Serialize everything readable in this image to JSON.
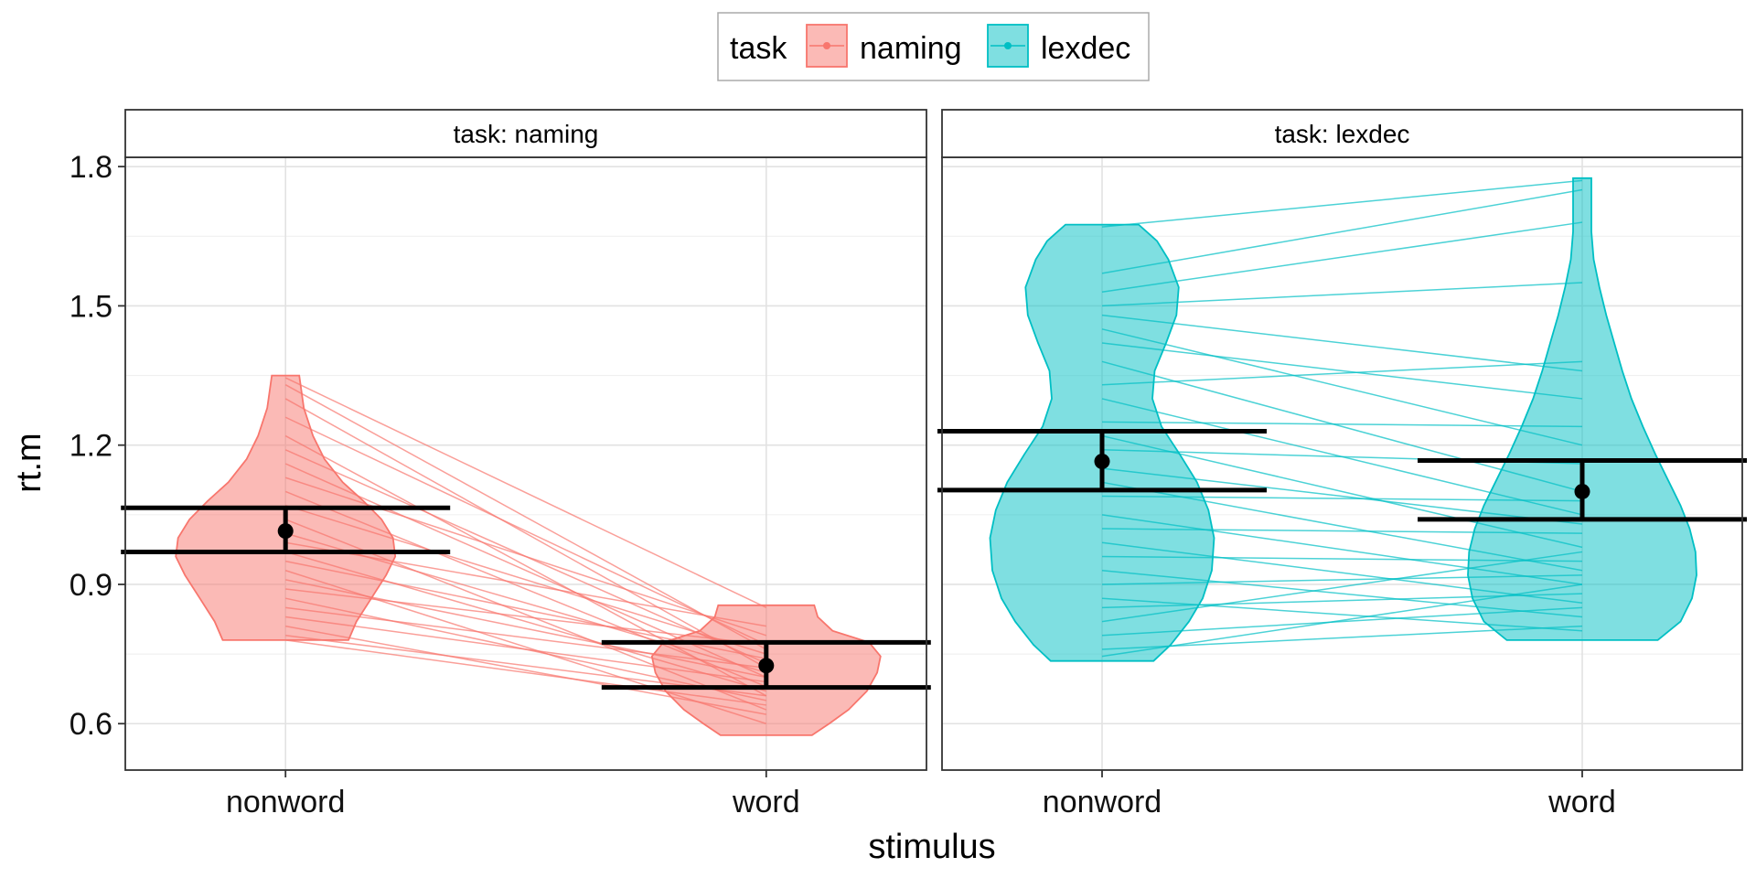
{
  "chart_data": {
    "type": "violin",
    "facet_label_prefix": "task: ",
    "facets": [
      "naming",
      "lexdec"
    ],
    "categories": [
      "nonword",
      "word"
    ],
    "xlabel": "stimulus",
    "ylabel": "rt.m",
    "ylim": [
      0.5,
      1.82
    ],
    "yticks": [
      0.6,
      0.9,
      1.2,
      1.5,
      1.8
    ],
    "ytick_labels": [
      "0.6",
      "0.9",
      "1.2",
      "1.5",
      "1.8"
    ],
    "grid": true,
    "legend": {
      "title": "task",
      "position": "top",
      "entries": [
        {
          "label": "naming",
          "color": "#F8766D"
        },
        {
          "label": "lexdec",
          "color": "#00BFC4"
        }
      ]
    },
    "series": [
      {
        "name": "naming",
        "color": "#F8766D",
        "groups": [
          {
            "category": "nonword",
            "range": [
              0.78,
              1.35
            ],
            "density": [
              [
                0.78,
                0.55
              ],
              [
                0.82,
                0.62
              ],
              [
                0.87,
                0.75
              ],
              [
                0.92,
                0.88
              ],
              [
                0.96,
                0.96
              ],
              [
                1.0,
                0.94
              ],
              [
                1.04,
                0.84
              ],
              [
                1.08,
                0.68
              ],
              [
                1.12,
                0.5
              ],
              [
                1.17,
                0.34
              ],
              [
                1.22,
                0.24
              ],
              [
                1.28,
                0.16
              ],
              [
                1.35,
                0.12
              ]
            ],
            "mean": 1.015,
            "ci": [
              0.97,
              1.065
            ]
          },
          {
            "category": "word",
            "range": [
              0.575,
              0.855
            ],
            "density": [
              [
                0.575,
                0.4
              ],
              [
                0.6,
                0.55
              ],
              [
                0.63,
                0.72
              ],
              [
                0.67,
                0.88
              ],
              [
                0.71,
                0.97
              ],
              [
                0.745,
                1.0
              ],
              [
                0.775,
                0.9
              ],
              [
                0.8,
                0.58
              ],
              [
                0.83,
                0.45
              ],
              [
                0.855,
                0.42
              ]
            ],
            "mean": 0.725,
            "ci": [
              0.678,
              0.775
            ]
          }
        ],
        "pairs": [
          [
            1.345,
            0.85
          ],
          [
            1.33,
            0.76
          ],
          [
            1.3,
            0.72
          ],
          [
            1.26,
            0.77
          ],
          [
            1.22,
            0.66
          ],
          [
            1.19,
            0.73
          ],
          [
            1.16,
            0.7
          ],
          [
            1.13,
            0.79
          ],
          [
            1.1,
            0.68
          ],
          [
            1.07,
            0.75
          ],
          [
            1.04,
            0.63
          ],
          [
            1.01,
            0.71
          ],
          [
            0.99,
            0.81
          ],
          [
            0.97,
            0.67
          ],
          [
            0.95,
            0.74
          ],
          [
            0.93,
            0.6
          ],
          [
            0.91,
            0.7
          ],
          [
            0.89,
            0.77
          ],
          [
            0.87,
            0.65
          ],
          [
            0.85,
            0.72
          ],
          [
            0.83,
            0.69
          ],
          [
            0.81,
            0.62
          ],
          [
            0.79,
            0.66
          ],
          [
            0.78,
            0.64
          ]
        ]
      },
      {
        "name": "lexdec",
        "color": "#00BFC4",
        "groups": [
          {
            "category": "nonword",
            "range": [
              0.735,
              1.675
            ],
            "density": [
              [
                0.735,
                0.45
              ],
              [
                0.77,
                0.6
              ],
              [
                0.82,
                0.76
              ],
              [
                0.87,
                0.88
              ],
              [
                0.93,
                0.96
              ],
              [
                1.0,
                0.98
              ],
              [
                1.06,
                0.93
              ],
              [
                1.12,
                0.83
              ],
              [
                1.18,
                0.68
              ],
              [
                1.24,
                0.52
              ],
              [
                1.3,
                0.44
              ],
              [
                1.36,
                0.46
              ],
              [
                1.42,
                0.56
              ],
              [
                1.48,
                0.65
              ],
              [
                1.54,
                0.67
              ],
              [
                1.6,
                0.58
              ],
              [
                1.64,
                0.48
              ],
              [
                1.675,
                0.32
              ]
            ],
            "mean": 1.165,
            "ci": [
              1.103,
              1.23
            ]
          },
          {
            "category": "word",
            "range": [
              0.78,
              1.775
            ],
            "density": [
              [
                0.78,
                0.66
              ],
              [
                0.82,
                0.86
              ],
              [
                0.87,
                0.96
              ],
              [
                0.92,
                1.0
              ],
              [
                0.97,
                0.99
              ],
              [
                1.02,
                0.94
              ],
              [
                1.07,
                0.86
              ],
              [
                1.12,
                0.76
              ],
              [
                1.18,
                0.64
              ],
              [
                1.24,
                0.53
              ],
              [
                1.3,
                0.43
              ],
              [
                1.36,
                0.35
              ],
              [
                1.42,
                0.28
              ],
              [
                1.48,
                0.21
              ],
              [
                1.54,
                0.15
              ],
              [
                1.6,
                0.1
              ],
              [
                1.66,
                0.08
              ],
              [
                1.72,
                0.08
              ],
              [
                1.775,
                0.08
              ]
            ],
            "mean": 1.1,
            "ci": [
              1.04,
              1.167
            ]
          }
        ],
        "pairs": [
          [
            1.67,
            1.77
          ],
          [
            1.57,
            1.75
          ],
          [
            1.53,
            1.68
          ],
          [
            1.5,
            1.55
          ],
          [
            1.48,
            1.36
          ],
          [
            1.45,
            1.2
          ],
          [
            1.42,
            1.3
          ],
          [
            1.38,
            1.1
          ],
          [
            1.33,
            1.38
          ],
          [
            1.3,
            1.05
          ],
          [
            1.25,
            1.24
          ],
          [
            1.22,
            0.98
          ],
          [
            1.19,
            1.16
          ],
          [
            1.15,
            1.03
          ],
          [
            1.12,
            0.93
          ],
          [
            1.09,
            1.08
          ],
          [
            1.05,
            0.9
          ],
          [
            1.02,
            1.01
          ],
          [
            0.99,
            0.86
          ],
          [
            0.96,
            0.95
          ],
          [
            0.93,
            0.83
          ],
          [
            0.9,
            0.92
          ],
          [
            0.87,
            0.8
          ],
          [
            0.85,
            0.88
          ],
          [
            0.82,
            0.97
          ],
          [
            0.79,
            0.85
          ],
          [
            0.76,
            0.81
          ],
          [
            0.745,
            0.9
          ]
        ]
      }
    ]
  }
}
